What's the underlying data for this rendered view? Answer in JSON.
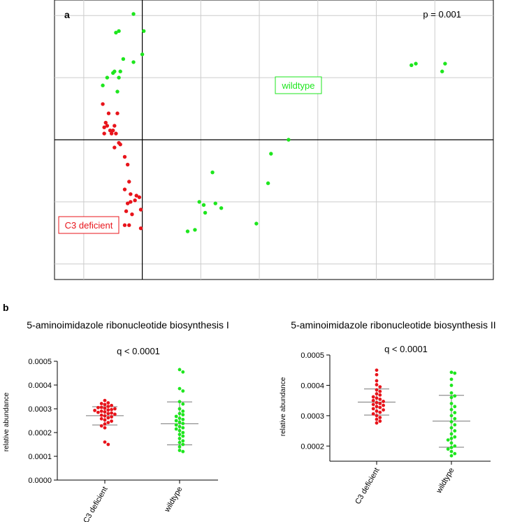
{
  "panel_a": {
    "label": "a",
    "p_value": "p = 0.001"
  },
  "panel_b": {
    "label": "b"
  },
  "colors": {
    "red": "#e8141b",
    "green": "#1ee61e",
    "grid": "#cccccc",
    "axis": "#000000"
  },
  "chart_data": [
    {
      "type": "scatter",
      "title": "",
      "xlabel": "",
      "ylabel": "",
      "xlim": [
        -3,
        12
      ],
      "ylim": [
        -4.5,
        4.5
      ],
      "grid": true,
      "annotations": [
        "p = 0.001"
      ],
      "series": [
        {
          "name": "C3 deficient",
          "color": "#e8141b",
          "points": [
            [
              -1.35,
              1.15
            ],
            [
              -1.3,
              0.4
            ],
            [
              -1.15,
              0.85
            ],
            [
              -1.0,
              0.3
            ],
            [
              -1.2,
              0.45
            ],
            [
              -1.05,
              0.2
            ],
            [
              -1.3,
              0.2
            ],
            [
              -0.8,
              -0.1
            ],
            [
              -1.25,
              0.55
            ],
            [
              -0.95,
              0.45
            ],
            [
              -1.1,
              0.3
            ],
            [
              -0.9,
              0.2
            ],
            [
              -0.85,
              0.85
            ],
            [
              -0.75,
              -0.15
            ],
            [
              -0.95,
              -0.25
            ],
            [
              -0.6,
              -0.55
            ],
            [
              -0.5,
              -0.8
            ],
            [
              -0.45,
              -1.35
            ],
            [
              -0.6,
              -1.6
            ],
            [
              -0.4,
              -1.75
            ],
            [
              -0.2,
              -1.8
            ],
            [
              -0.25,
              -1.95
            ],
            [
              -0.4,
              -2.0
            ],
            [
              -0.5,
              -2.05
            ],
            [
              -0.55,
              -2.3
            ],
            [
              -0.35,
              -2.4
            ],
            [
              -0.05,
              -2.25
            ],
            [
              -0.1,
              -1.85
            ],
            [
              -0.6,
              -2.75
            ],
            [
              -0.45,
              -2.75
            ],
            [
              -0.05,
              -2.85
            ]
          ]
        },
        {
          "name": "wildtype",
          "color": "#1ee61e",
          "points": [
            [
              -0.3,
              4.05
            ],
            [
              -0.9,
              3.45
            ],
            [
              -0.8,
              3.5
            ],
            [
              0.05,
              3.5
            ],
            [
              0.0,
              2.75
            ],
            [
              -0.65,
              2.6
            ],
            [
              -0.3,
              2.5
            ],
            [
              -1.0,
              2.15
            ],
            [
              -0.75,
              2.2
            ],
            [
              -0.95,
              2.2
            ],
            [
              -0.8,
              2.0
            ],
            [
              -1.2,
              2.0
            ],
            [
              -1.35,
              1.75
            ],
            [
              -0.85,
              1.55
            ],
            [
              5.0,
              0.0
            ],
            [
              4.4,
              -0.45
            ],
            [
              2.4,
              -1.05
            ],
            [
              4.3,
              -1.4
            ],
            [
              1.95,
              -2.0
            ],
            [
              2.1,
              -2.1
            ],
            [
              2.5,
              -2.05
            ],
            [
              2.7,
              -2.2
            ],
            [
              2.15,
              -2.35
            ],
            [
              3.9,
              -2.7
            ],
            [
              1.8,
              -2.9
            ],
            [
              1.55,
              -2.95
            ],
            [
              9.2,
              2.4
            ],
            [
              9.35,
              2.45
            ],
            [
              10.35,
              2.45
            ],
            [
              10.25,
              2.2
            ]
          ]
        }
      ],
      "labels": [
        {
          "text": "wildtype",
          "color": "#1ee61e"
        },
        {
          "text": "C3 deficient",
          "color": "#e8141b"
        }
      ]
    },
    {
      "type": "scatter",
      "title": "5-aminoimidazole ribonucleotide biosynthesis I",
      "annotation": "q < 0.0001",
      "ylabel": "relative abundance",
      "ylim": [
        0,
        0.0005
      ],
      "yticks": [
        "0.0000",
        "0.0001",
        "0.0002",
        "0.0003",
        "0.0004",
        "0.0005"
      ],
      "categories": [
        "C3 deficient",
        "wildtype"
      ],
      "series": [
        {
          "name": "C3 deficient",
          "color": "#e8141b",
          "mean": 0.000271,
          "sd_low": 0.000232,
          "sd_high": 0.000309,
          "values": [
            0.000335,
            0.000325,
            0.000322,
            0.000318,
            0.000314,
            0.00031,
            0.000306,
            0.000305,
            0.000302,
            0.0003,
            0.000297,
            0.000295,
            0.000293,
            0.00029,
            0.000287,
            0.000285,
            0.000282,
            0.00028,
            0.000277,
            0.000273,
            0.00027,
            0.000266,
            0.000262,
            0.000258,
            0.000253,
            0.000248,
            0.000242,
            0.000236,
            0.000228,
            0.00022,
            0.00016,
            0.00015
          ]
        },
        {
          "name": "wildtype",
          "color": "#1ee61e",
          "mean": 0.000237,
          "sd_low": 0.000148,
          "sd_high": 0.000329,
          "values": [
            0.000465,
            0.000455,
            0.000385,
            0.000375,
            0.00033,
            0.00032,
            0.0003,
            0.00029,
            0.00028,
            0.000275,
            0.000268,
            0.00026,
            0.000255,
            0.00025,
            0.000244,
            0.000238,
            0.000232,
            0.000225,
            0.00022,
            0.000215,
            0.000208,
            0.0002,
            0.000192,
            0.000185,
            0.000175,
            0.000165,
            0.000158,
            0.00015,
            0.00014,
            0.000125,
            0.00012
          ]
        }
      ]
    },
    {
      "type": "scatter",
      "title": "5-aminoimidazole ribonucleotide biosynthesis II",
      "annotation": "q < 0.0001",
      "ylabel": "relative abundance",
      "ylim": [
        0.00015,
        0.0005
      ],
      "yticks": [
        "0.0002",
        "0.0003",
        "0.0004",
        "0.0005"
      ],
      "categories": [
        "C3 deficient",
        "wildtype"
      ],
      "series": [
        {
          "name": "C3 deficient",
          "color": "#e8141b",
          "mean": 0.000345,
          "sd_low": 0.000302,
          "sd_high": 0.000388,
          "values": [
            0.00045,
            0.000435,
            0.000415,
            0.000402,
            0.000395,
            0.000385,
            0.00038,
            0.000372,
            0.000368,
            0.000362,
            0.000358,
            0.000354,
            0.00035,
            0.000347,
            0.000343,
            0.00034,
            0.000337,
            0.000334,
            0.00033,
            0.000327,
            0.000323,
            0.000319,
            0.000315,
            0.000311,
            0.000306,
            0.0003,
            0.000294,
            0.000288,
            0.000282,
            0.000276
          ]
        },
        {
          "name": "wildtype",
          "color": "#1ee61e",
          "mean": 0.000282,
          "sd_low": 0.000196,
          "sd_high": 0.000367,
          "values": [
            0.000443,
            0.00044,
            0.00042,
            0.0004,
            0.000375,
            0.000365,
            0.00036,
            0.00034,
            0.00033,
            0.00032,
            0.00031,
            0.0003,
            0.00029,
            0.00028,
            0.00027,
            0.00026,
            0.00025,
            0.00024,
            0.00023,
            0.000225,
            0.00022,
            0.00021,
            0.0002,
            0.000195,
            0.00019,
            0.000182,
            0.000175,
            0.000168
          ]
        }
      ]
    }
  ]
}
